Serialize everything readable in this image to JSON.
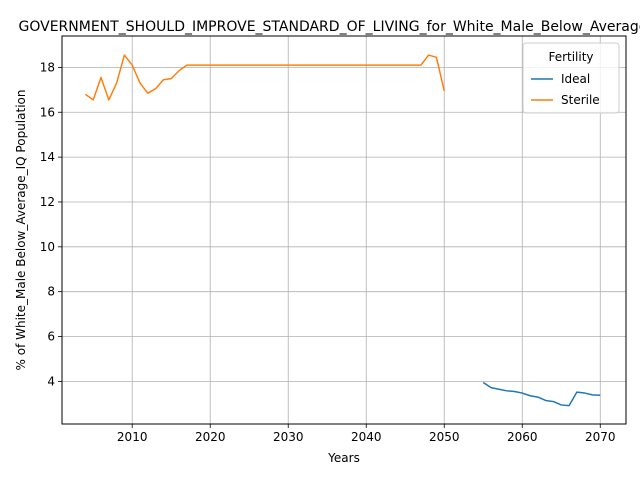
{
  "chart_data": {
    "type": "line",
    "title": "GOVERNMENT_SHOULD_IMPROVE_STANDARD_OF_LIVING_for_White_Male_Below_Average_IQ",
    "xlabel": "Years",
    "ylabel": "% of White_Male Below_Average_IQ Population",
    "xlim": [
      2001,
      2073.3
    ],
    "ylim": [
      2.1,
      19.4
    ],
    "xticks": [
      2010,
      2020,
      2030,
      2040,
      2050,
      2060,
      2070
    ],
    "yticks": [
      4,
      6,
      8,
      10,
      12,
      14,
      16,
      18
    ],
    "grid": true,
    "legend": {
      "title": "Fertility",
      "position": "top-right"
    },
    "series": [
      {
        "name": "Ideal",
        "color": "#1f77b4",
        "x": [
          2055,
          2056,
          2057,
          2058,
          2059,
          2060,
          2061,
          2062,
          2063,
          2064,
          2065,
          2066,
          2067,
          2068,
          2069,
          2070
        ],
        "y": [
          3.95,
          3.72,
          3.65,
          3.58,
          3.55,
          3.48,
          3.36,
          3.3,
          3.15,
          3.1,
          2.95,
          2.92,
          3.52,
          3.48,
          3.4,
          3.38
        ]
      },
      {
        "name": "Sterile",
        "color": "#ff7f0e",
        "x": [
          2004,
          2005,
          2006,
          2007,
          2008,
          2009,
          2010,
          2011,
          2012,
          2013,
          2014,
          2015,
          2016,
          2017,
          2018,
          2019,
          2020,
          2021,
          2022,
          2023,
          2024,
          2025,
          2026,
          2027,
          2028,
          2029,
          2030,
          2031,
          2032,
          2033,
          2034,
          2035,
          2036,
          2037,
          2038,
          2039,
          2040,
          2041,
          2042,
          2043,
          2044,
          2045,
          2046,
          2047,
          2048,
          2049,
          2050
        ],
        "y": [
          16.8,
          16.55,
          17.55,
          16.55,
          17.3,
          18.55,
          18.1,
          17.3,
          16.85,
          17.05,
          17.45,
          17.5,
          17.85,
          18.1,
          18.1,
          18.1,
          18.1,
          18.1,
          18.1,
          18.1,
          18.1,
          18.1,
          18.1,
          18.1,
          18.1,
          18.1,
          18.1,
          18.1,
          18.1,
          18.1,
          18.1,
          18.1,
          18.1,
          18.1,
          18.1,
          18.1,
          18.1,
          18.1,
          18.1,
          18.1,
          18.1,
          18.1,
          18.1,
          18.1,
          18.55,
          18.45,
          16.95
        ]
      }
    ]
  }
}
